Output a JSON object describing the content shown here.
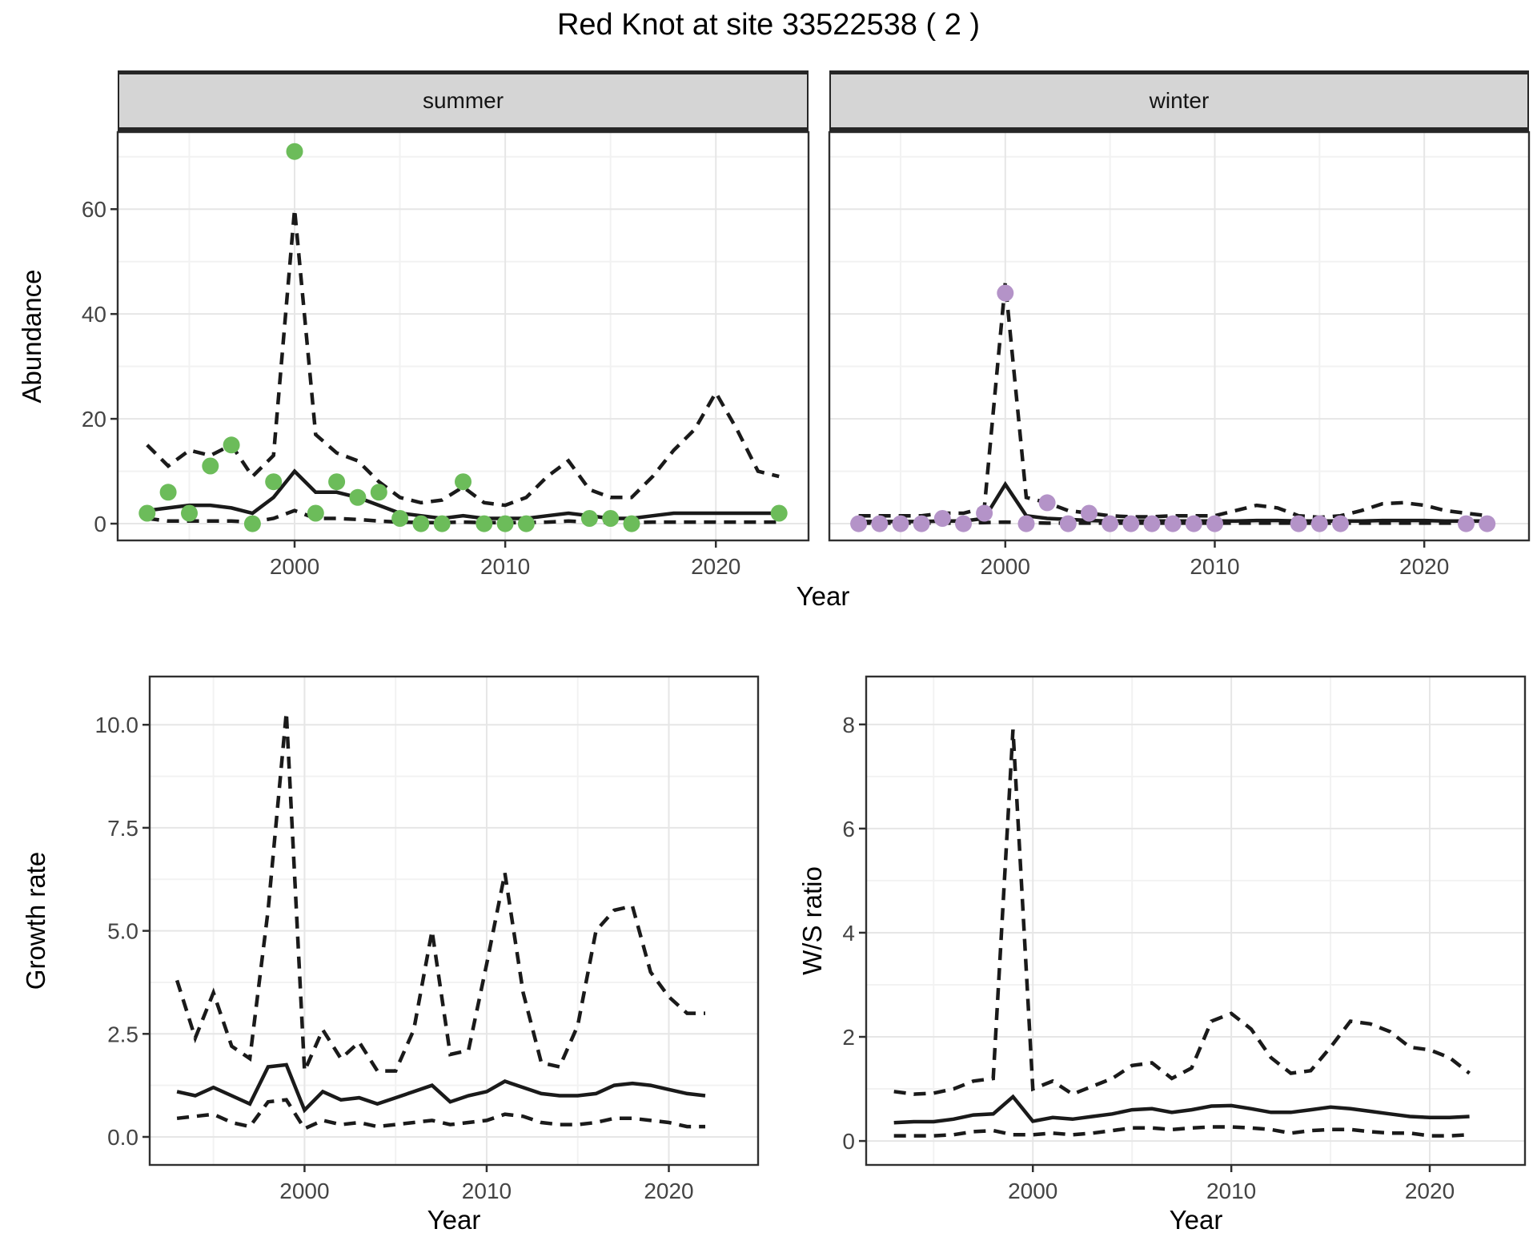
{
  "title": "Red Knot at site 33522538 ( 2 )",
  "colors": {
    "summer_point": "#6CBC5A",
    "winter_point": "#B493C8",
    "line": "#1A1A1A",
    "panel_border": "#303030",
    "grid_major": "#E6E6E6",
    "grid_minor": "#F2F2F2",
    "tick_text": "#444444",
    "strip_bg": "#D5D5D5"
  },
  "chart_data": [
    {
      "id": "abundance_summer",
      "type": "scatter",
      "facet_label": "summer",
      "xlabel": "Year",
      "ylabel": "Abundance",
      "xlim": [
        1991.6,
        2024.4
      ],
      "ylim": [
        -3.2,
        74.7
      ],
      "xticks": [
        2000,
        2010,
        2020
      ],
      "xtick_labels": [
        "2000",
        "2010",
        "2020"
      ],
      "yticks": [
        0,
        20,
        40,
        60
      ],
      "ytick_labels": [
        "0",
        "20",
        "40",
        "60"
      ],
      "show_y_ticks": true,
      "grid": true,
      "point_color": "#6CBC5A",
      "points": {
        "x": [
          1993,
          1994,
          1995,
          1996,
          1997,
          1998,
          1999,
          2000,
          2001,
          2002,
          2003,
          2004,
          2005,
          2006,
          2007,
          2008,
          2009,
          2010,
          2011,
          2014,
          2015,
          2016,
          2023
        ],
        "y": [
          2,
          6,
          2,
          11,
          15,
          0,
          8,
          71,
          2,
          8,
          5,
          6,
          1,
          0,
          0,
          8,
          0,
          0,
          0,
          1,
          1,
          0,
          2
        ]
      },
      "series": [
        {
          "name": "median",
          "style": "solid",
          "x": [
            1993,
            1994,
            1995,
            1996,
            1997,
            1998,
            1999,
            2000,
            2001,
            2002,
            2003,
            2004,
            2005,
            2006,
            2007,
            2008,
            2009,
            2010,
            2011,
            2012,
            2013,
            2014,
            2015,
            2016,
            2017,
            2018,
            2019,
            2020,
            2021,
            2022,
            2023
          ],
          "y": [
            2.5,
            3,
            3.5,
            3.5,
            3,
            2,
            5,
            10,
            6,
            6,
            5,
            3.5,
            2,
            1.5,
            1,
            1.5,
            1,
            1,
            1,
            1.5,
            2,
            1.5,
            1,
            1,
            1.5,
            2,
            2,
            2,
            2,
            2,
            2
          ]
        },
        {
          "name": "upper",
          "style": "dashed",
          "x": [
            1993,
            1994,
            1995,
            1996,
            1997,
            1998,
            1999,
            2000,
            2001,
            2002,
            2003,
            2004,
            2005,
            2006,
            2007,
            2008,
            2009,
            2010,
            2011,
            2012,
            2013,
            2014,
            2015,
            2016,
            2017,
            2018,
            2019,
            2020,
            2021,
            2022,
            2023
          ],
          "y": [
            15,
            11,
            14,
            13,
            15,
            9,
            13,
            60,
            17,
            13.5,
            12,
            8,
            5,
            4,
            4.5,
            7,
            4,
            3.5,
            5,
            9,
            12,
            6.5,
            5,
            5,
            9,
            14,
            18,
            25,
            18,
            10,
            9
          ]
        },
        {
          "name": "lower",
          "style": "dashed",
          "x": [
            1993,
            1994,
            1995,
            1996,
            1997,
            1998,
            1999,
            2000,
            2001,
            2002,
            2003,
            2004,
            2005,
            2006,
            2007,
            2008,
            2009,
            2010,
            2011,
            2012,
            2013,
            2014,
            2015,
            2016,
            2017,
            2018,
            2019,
            2020,
            2021,
            2022,
            2023
          ],
          "y": [
            1,
            0.5,
            0.5,
            0.5,
            0.5,
            0.3,
            1,
            2.5,
            1,
            1,
            0.8,
            0.5,
            0.3,
            0.2,
            0.2,
            0.3,
            0.2,
            0.2,
            0.2,
            0.3,
            0.5,
            0.3,
            0.2,
            0.2,
            0.3,
            0.3,
            0.3,
            0.3,
            0.3,
            0.3,
            0.3
          ]
        }
      ]
    },
    {
      "id": "abundance_winter",
      "type": "scatter",
      "facet_label": "winter",
      "xlabel": "Year",
      "ylabel": "Abundance",
      "xlim": [
        1991.6,
        2025.0
      ],
      "ylim": [
        -3.2,
        74.7
      ],
      "xticks": [
        2000,
        2010,
        2020
      ],
      "xtick_labels": [
        "2000",
        "2010",
        "2020"
      ],
      "yticks": [
        0,
        20,
        40,
        60
      ],
      "ytick_labels": [
        "0",
        "20",
        "40",
        "60"
      ],
      "show_y_ticks": false,
      "grid": true,
      "point_color": "#B493C8",
      "points": {
        "x": [
          1993,
          1994,
          1995,
          1996,
          1997,
          1998,
          1999,
          2000,
          2001,
          2002,
          2003,
          2004,
          2005,
          2006,
          2007,
          2008,
          2009,
          2010,
          2014,
          2015,
          2016,
          2022,
          2023
        ],
        "y": [
          0,
          0,
          0,
          0,
          1,
          0,
          2,
          44,
          0,
          4,
          0,
          2,
          0,
          0,
          0,
          0,
          0,
          0,
          0,
          0,
          0,
          0,
          0
        ]
      },
      "series": [
        {
          "name": "median",
          "style": "solid",
          "x": [
            1993,
            1994,
            1995,
            1996,
            1997,
            1998,
            1999,
            2000,
            2001,
            2002,
            2003,
            2004,
            2005,
            2006,
            2007,
            2008,
            2009,
            2010,
            2011,
            2012,
            2013,
            2014,
            2015,
            2016,
            2017,
            2018,
            2019,
            2020,
            2021,
            2022,
            2023
          ],
          "y": [
            0.4,
            0.4,
            0.4,
            0.4,
            0.5,
            0.5,
            1,
            7.5,
            1.5,
            1,
            0.8,
            0.6,
            0.5,
            0.5,
            0.5,
            0.5,
            0.5,
            0.5,
            0.5,
            0.6,
            0.6,
            0.5,
            0.5,
            0.5,
            0.5,
            0.6,
            0.6,
            0.6,
            0.5,
            0.5,
            0.5
          ]
        },
        {
          "name": "upper",
          "style": "dashed",
          "x": [
            1993,
            1994,
            1995,
            1996,
            1997,
            1998,
            1999,
            2000,
            2001,
            2002,
            2003,
            2004,
            2005,
            2006,
            2007,
            2008,
            2009,
            2010,
            2011,
            2012,
            2013,
            2014,
            2015,
            2016,
            2017,
            2018,
            2019,
            2020,
            2021,
            2022,
            2023
          ],
          "y": [
            1.5,
            1.5,
            1.5,
            1.5,
            2,
            2,
            3,
            46,
            5,
            4,
            2.5,
            2,
            1.5,
            1.3,
            1.3,
            1.5,
            1.5,
            1.5,
            2.5,
            3.5,
            3,
            1.5,
            1.2,
            1.5,
            2.5,
            3.8,
            4,
            3.5,
            2.5,
            2,
            1.5
          ]
        },
        {
          "name": "lower",
          "style": "dashed",
          "x": [
            1993,
            1994,
            1995,
            1996,
            1997,
            1998,
            1999,
            2000,
            2001,
            2002,
            2003,
            2004,
            2005,
            2006,
            2007,
            2008,
            2009,
            2010,
            2011,
            2012,
            2013,
            2014,
            2015,
            2016,
            2017,
            2018,
            2019,
            2020,
            2021,
            2022,
            2023
          ],
          "y": [
            0.1,
            0.1,
            0.1,
            0.1,
            0.1,
            0.1,
            0.2,
            0.3,
            0.2,
            0.1,
            0.1,
            0.1,
            0.1,
            0.1,
            0.1,
            0.1,
            0.1,
            0.1,
            0.1,
            0.1,
            0.1,
            0.1,
            0.1,
            0.1,
            0.1,
            0.1,
            0.1,
            0.1,
            0.1,
            0.1,
            0.1
          ]
        }
      ]
    },
    {
      "id": "growth_rate",
      "type": "line",
      "facet_label": "",
      "xlabel": "Year",
      "ylabel": "Growth rate",
      "xlim": [
        1991.5,
        2024.9
      ],
      "ylim": [
        -0.68,
        11.17
      ],
      "xticks": [
        2000,
        2010,
        2020
      ],
      "xtick_labels": [
        "2000",
        "2010",
        "2020"
      ],
      "yticks": [
        0,
        2.5,
        5,
        7.5,
        10
      ],
      "ytick_labels": [
        "0.0",
        "2.5",
        "5.0",
        "7.5",
        "10.0"
      ],
      "show_y_ticks": true,
      "grid": true,
      "point_color": null,
      "points": null,
      "series": [
        {
          "name": "median",
          "style": "solid",
          "x": [
            1993,
            1994,
            1995,
            1996,
            1997,
            1998,
            1999,
            2000,
            2001,
            2002,
            2003,
            2004,
            2005,
            2006,
            2007,
            2008,
            2009,
            2010,
            2011,
            2012,
            2013,
            2014,
            2015,
            2016,
            2017,
            2018,
            2019,
            2020,
            2021,
            2022
          ],
          "y": [
            1.1,
            1.0,
            1.2,
            1.0,
            0.8,
            1.7,
            1.75,
            0.65,
            1.1,
            0.9,
            0.95,
            0.8,
            0.95,
            1.1,
            1.25,
            0.85,
            1.0,
            1.1,
            1.35,
            1.2,
            1.05,
            1.0,
            1.0,
            1.05,
            1.25,
            1.3,
            1.25,
            1.15,
            1.05,
            1.0
          ]
        },
        {
          "name": "upper",
          "style": "dashed",
          "x": [
            1993,
            1994,
            1995,
            1996,
            1997,
            1998,
            1999,
            2000,
            2001,
            2002,
            2003,
            2004,
            2005,
            2006,
            2007,
            2008,
            2009,
            2010,
            2011,
            2012,
            2013,
            2014,
            2015,
            2016,
            2017,
            2018,
            2019,
            2020,
            2021,
            2022
          ],
          "y": [
            3.8,
            2.4,
            3.5,
            2.2,
            1.9,
            5.5,
            10.3,
            1.6,
            2.6,
            1.9,
            2.3,
            1.6,
            1.6,
            2.6,
            5.0,
            2.0,
            2.1,
            4.2,
            6.4,
            3.5,
            1.8,
            1.7,
            2.7,
            5.0,
            5.5,
            5.6,
            4.0,
            3.4,
            3.0,
            3.0
          ]
        },
        {
          "name": "lower",
          "style": "dashed",
          "x": [
            1993,
            1994,
            1995,
            1996,
            1997,
            1998,
            1999,
            2000,
            2001,
            2002,
            2003,
            2004,
            2005,
            2006,
            2007,
            2008,
            2009,
            2010,
            2011,
            2012,
            2013,
            2014,
            2015,
            2016,
            2017,
            2018,
            2019,
            2020,
            2021,
            2022
          ],
          "y": [
            0.45,
            0.5,
            0.55,
            0.35,
            0.25,
            0.85,
            0.9,
            0.2,
            0.4,
            0.3,
            0.35,
            0.25,
            0.3,
            0.35,
            0.4,
            0.3,
            0.35,
            0.4,
            0.55,
            0.5,
            0.35,
            0.3,
            0.3,
            0.35,
            0.45,
            0.45,
            0.4,
            0.35,
            0.25,
            0.25
          ]
        }
      ]
    },
    {
      "id": "ws_ratio",
      "type": "line",
      "facet_label": "",
      "xlabel": "Year",
      "ylabel": "W/S ratio",
      "xlim": [
        1991.6,
        2024.8
      ],
      "ylim": [
        -0.46,
        8.92
      ],
      "xticks": [
        2000,
        2010,
        2020
      ],
      "xtick_labels": [
        "2000",
        "2010",
        "2020"
      ],
      "yticks": [
        0,
        2,
        4,
        6,
        8
      ],
      "ytick_labels": [
        "0",
        "2",
        "4",
        "6",
        "8"
      ],
      "show_y_ticks": true,
      "grid": true,
      "point_color": null,
      "points": null,
      "series": [
        {
          "name": "median",
          "style": "solid",
          "x": [
            1993,
            1994,
            1995,
            1996,
            1997,
            1998,
            1999,
            2000,
            2001,
            2002,
            2003,
            2004,
            2005,
            2006,
            2007,
            2008,
            2009,
            2010,
            2011,
            2012,
            2013,
            2014,
            2015,
            2016,
            2017,
            2018,
            2019,
            2020,
            2021,
            2022
          ],
          "y": [
            0.35,
            0.37,
            0.37,
            0.42,
            0.5,
            0.52,
            0.85,
            0.38,
            0.45,
            0.42,
            0.47,
            0.52,
            0.6,
            0.62,
            0.55,
            0.6,
            0.67,
            0.68,
            0.62,
            0.55,
            0.55,
            0.6,
            0.65,
            0.62,
            0.57,
            0.52,
            0.47,
            0.45,
            0.45,
            0.47
          ]
        },
        {
          "name": "upper",
          "style": "dashed",
          "x": [
            1993,
            1994,
            1995,
            1996,
            1997,
            1998,
            1999,
            2000,
            2001,
            2002,
            2003,
            2004,
            2005,
            2006,
            2007,
            2008,
            2009,
            2010,
            2011,
            2012,
            2013,
            2014,
            2015,
            2016,
            2017,
            2018,
            2019,
            2020,
            2021,
            2022
          ],
          "y": [
            0.95,
            0.9,
            0.92,
            1.0,
            1.15,
            1.2,
            7.9,
            1.0,
            1.15,
            0.9,
            1.05,
            1.2,
            1.45,
            1.5,
            1.2,
            1.4,
            2.3,
            2.45,
            2.15,
            1.6,
            1.3,
            1.35,
            1.8,
            2.3,
            2.25,
            2.1,
            1.8,
            1.75,
            1.6,
            1.3
          ]
        },
        {
          "name": "lower",
          "style": "dashed",
          "x": [
            1993,
            1994,
            1995,
            1996,
            1997,
            1998,
            1999,
            2000,
            2001,
            2002,
            2003,
            2004,
            2005,
            2006,
            2007,
            2008,
            2009,
            2010,
            2011,
            2012,
            2013,
            2014,
            2015,
            2016,
            2017,
            2018,
            2019,
            2020,
            2021,
            2022
          ],
          "y": [
            0.1,
            0.1,
            0.1,
            0.12,
            0.18,
            0.2,
            0.12,
            0.12,
            0.15,
            0.12,
            0.15,
            0.2,
            0.25,
            0.25,
            0.22,
            0.25,
            0.27,
            0.27,
            0.25,
            0.22,
            0.15,
            0.2,
            0.22,
            0.22,
            0.18,
            0.15,
            0.15,
            0.1,
            0.1,
            0.12
          ]
        }
      ]
    }
  ]
}
